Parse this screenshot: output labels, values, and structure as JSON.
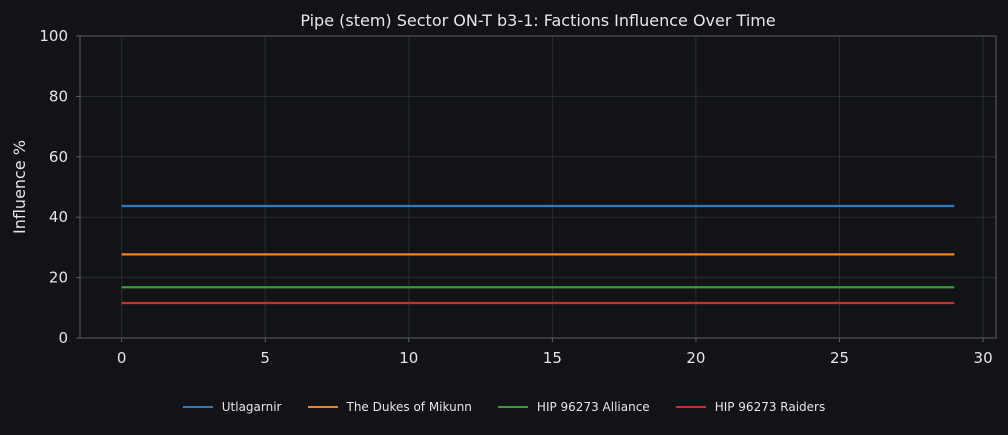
{
  "chart_data": {
    "type": "line",
    "title": "Pipe (stem) Sector ON-T b3-1: Factions Influence Over Time",
    "xlabel": "",
    "ylabel": "Influence %",
    "xlim": [
      -1.45,
      30.45
    ],
    "ylim": [
      0,
      100
    ],
    "xticks": [
      0,
      5,
      10,
      15,
      20,
      25,
      30
    ],
    "yticks": [
      0,
      20,
      40,
      60,
      80,
      100
    ],
    "grid": true,
    "legend_position": "bottom",
    "x": [
      0,
      29
    ],
    "series": [
      {
        "name": "Utlagarnir",
        "values": [
          43.7,
          43.7
        ],
        "color": "#2f7bbf"
      },
      {
        "name": "The Dukes of Mikunn",
        "values": [
          27.7,
          27.7
        ],
        "color": "#f28025"
      },
      {
        "name": "HIP 96273 Alliance",
        "values": [
          16.8,
          16.8
        ],
        "color": "#35a035"
      },
      {
        "name": "HIP 96273 Raiders",
        "values": [
          11.6,
          11.6
        ],
        "color": "#d02a2a"
      }
    ]
  },
  "colors": {
    "background": "#111317",
    "grid": "#2a2d33",
    "axis": "#5a5d63",
    "text": "#e6e6e6"
  }
}
